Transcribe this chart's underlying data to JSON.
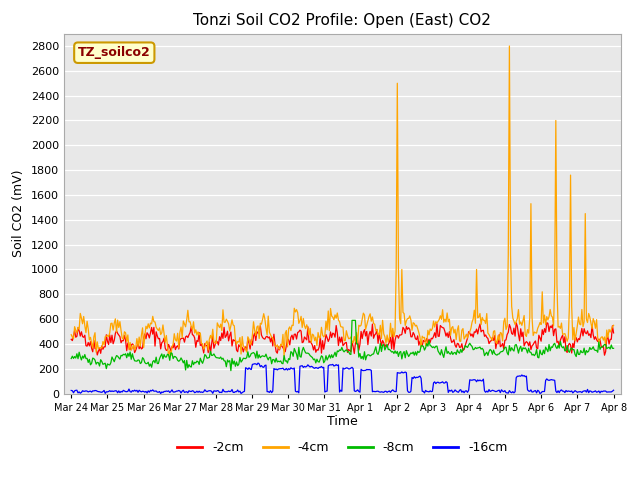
{
  "title": "Tonzi Soil CO2 Profile: Open (East) CO2",
  "ylabel": "Soil CO2 (mV)",
  "xlabel": "Time",
  "watermark": "TZ_soilco2",
  "fig_facecolor": "#ffffff",
  "plot_facecolor": "#e8e8e8",
  "ylim": [
    0,
    2900
  ],
  "yticks": [
    0,
    200,
    400,
    600,
    800,
    1000,
    1200,
    1400,
    1600,
    1800,
    2000,
    2200,
    2400,
    2600,
    2800
  ],
  "xtick_labels": [
    "Mar 24",
    "Mar 25",
    "Mar 26",
    "Mar 27",
    "Mar 28",
    "Mar 29",
    "Mar 30",
    "Mar 31",
    "Apr 1",
    "Apr 2",
    "Apr 3",
    "Apr 4",
    "Apr 5",
    "Apr 6",
    "Apr 7",
    "Apr 8"
  ],
  "series": {
    "2cm": {
      "color": "#ff0000",
      "label": "-2cm"
    },
    "4cm": {
      "color": "#ffa500",
      "label": "-4cm"
    },
    "8cm": {
      "color": "#00bb00",
      "label": "-8cm"
    },
    "16cm": {
      "color": "#0000ff",
      "label": "-16cm"
    }
  }
}
